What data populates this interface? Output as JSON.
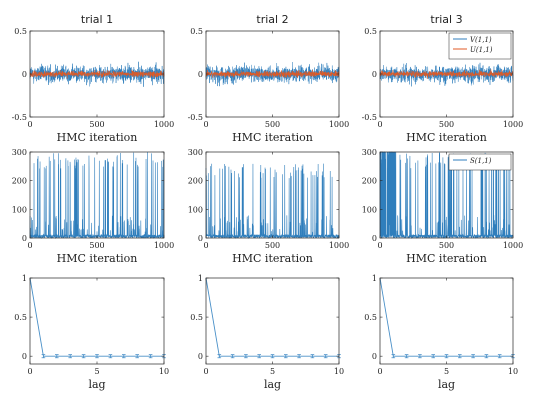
{
  "colors": {
    "trace_v": "#2f7ebc",
    "trace_u": "#e05a25",
    "s_trace": "#2f7ebc",
    "acf_line": "#4a90c8",
    "axis": "#262626"
  },
  "chart_data": [
    {
      "type": "line",
      "panel": "trial1-traces",
      "title": "trial 1",
      "xlabel": "HMC iteration",
      "ylabel": "",
      "xlim": [
        0,
        1000
      ],
      "ylim": [
        -0.5,
        0.5
      ],
      "xticks": [
        0,
        500,
        1000
      ],
      "yticks": [
        -0.5,
        0,
        0.5
      ],
      "xtick_labels": [
        "0",
        "500",
        "1000"
      ],
      "ytick_labels": [
        "-0.5",
        "0",
        "0.5"
      ],
      "series": [
        {
          "legend": "V(1,1)",
          "color": "#2f7ebc",
          "noise_amplitude": 0.15,
          "peak_range": [
            -0.33,
            0.33
          ],
          "n": 1000
        },
        {
          "legend": "U(1,1)",
          "color": "#e05a25",
          "noise_amplitude": 0.05,
          "peak_range": [
            -0.08,
            0.08
          ],
          "n": 1000
        }
      ],
      "legend_visible": false
    },
    {
      "type": "line",
      "panel": "trial2-traces",
      "title": "trial 2",
      "xlabel": "HMC iteration",
      "ylabel": "",
      "xlim": [
        0,
        1000
      ],
      "ylim": [
        -0.5,
        0.5
      ],
      "xticks": [
        0,
        500,
        1000
      ],
      "yticks": [
        -0.5,
        0,
        0.5
      ],
      "xtick_labels": [
        "0",
        "500",
        "1000"
      ],
      "ytick_labels": [
        "-0.5",
        "0",
        "0.5"
      ],
      "series": [
        {
          "legend": "V(1,1)",
          "color": "#2f7ebc",
          "noise_amplitude": 0.15,
          "peak_range": [
            -0.33,
            0.33
          ],
          "n": 1000
        },
        {
          "legend": "U(1,1)",
          "color": "#e05a25",
          "noise_amplitude": 0.05,
          "peak_range": [
            -0.08,
            0.08
          ],
          "n": 1000
        }
      ],
      "legend_visible": false
    },
    {
      "type": "line",
      "panel": "trial3-traces",
      "title": "trial 3",
      "xlabel": "HMC iteration",
      "ylabel": "",
      "xlim": [
        0,
        1000
      ],
      "ylim": [
        -0.5,
        0.5
      ],
      "xticks": [
        0,
        500,
        1000
      ],
      "yticks": [
        -0.5,
        0,
        0.5
      ],
      "xtick_labels": [
        "0",
        "500",
        "1000"
      ],
      "ytick_labels": [
        "-0.5",
        "0",
        "0.5"
      ],
      "series": [
        {
          "legend": "V(1,1)",
          "color": "#2f7ebc",
          "noise_amplitude": 0.15,
          "peak_range": [
            -0.33,
            0.33
          ],
          "n": 1000
        },
        {
          "legend": "U(1,1)",
          "color": "#e05a25",
          "noise_amplitude": 0.05,
          "peak_range": [
            -0.08,
            0.08
          ],
          "n": 1000
        }
      ],
      "legend_visible": true,
      "legend_position": "top-right"
    },
    {
      "type": "line",
      "panel": "trial1-s",
      "title": "",
      "xlabel": "HMC iteration",
      "ylabel": "",
      "xlim": [
        0,
        1000
      ],
      "ylim": [
        0,
        300
      ],
      "xticks": [
        0,
        500,
        1000
      ],
      "yticks": [
        0,
        100,
        200,
        300
      ],
      "xtick_labels": [
        "0",
        "500",
        "1000"
      ],
      "ytick_labels": [
        "0",
        "100",
        "200",
        "300"
      ],
      "series": [
        {
          "legend": "S(1,1)",
          "color": "#2f7ebc",
          "style": "spiky",
          "n": 1000,
          "spike_max": 300
        }
      ],
      "legend_visible": false
    },
    {
      "type": "line",
      "panel": "trial2-s",
      "title": "",
      "xlabel": "HMC iteration",
      "ylabel": "",
      "xlim": [
        0,
        1000
      ],
      "ylim": [
        0,
        300
      ],
      "xticks": [
        0,
        500,
        1000
      ],
      "yticks": [
        0,
        100,
        200,
        300
      ],
      "xtick_labels": [
        "0",
        "500",
        "1000"
      ],
      "ytick_labels": [
        "0",
        "100",
        "200",
        "300"
      ],
      "series": [
        {
          "legend": "S(1,1)",
          "color": "#2f7ebc",
          "style": "spiky",
          "n": 1000,
          "spike_max": 260
        }
      ],
      "legend_visible": false
    },
    {
      "type": "line",
      "panel": "trial3-s",
      "title": "",
      "xlabel": "HMC iteration",
      "ylabel": "",
      "xlim": [
        0,
        1000
      ],
      "ylim": [
        0,
        300
      ],
      "xticks": [
        0,
        500,
        1000
      ],
      "yticks": [
        0,
        100,
        200,
        300
      ],
      "xtick_labels": [
        "0",
        "500",
        "1000"
      ],
      "ytick_labels": [
        "0",
        "100",
        "200",
        "300"
      ],
      "series": [
        {
          "legend": "S(1,1)",
          "color": "#2f7ebc",
          "style": "spiky",
          "n": 1000,
          "spike_max": 300
        }
      ],
      "legend_visible": true,
      "legend_position": "top-right"
    },
    {
      "type": "line",
      "panel": "trial1-acf",
      "title": "",
      "xlabel": "lag",
      "ylabel": "",
      "xlim": [
        0,
        10
      ],
      "ylim": [
        -0.1,
        1
      ],
      "xticks": [
        0,
        5,
        10
      ],
      "yticks": [
        0,
        0.5,
        1
      ],
      "xtick_labels": [
        "0",
        "5",
        "10"
      ],
      "ytick_labels": [
        "0",
        "0.5",
        "1"
      ],
      "x": [
        0,
        1,
        2,
        3,
        4,
        5,
        6,
        7,
        8,
        9,
        10
      ],
      "series": [
        {
          "values": [
            1,
            0,
            0,
            0,
            0,
            0,
            0,
            0,
            0,
            0,
            0
          ],
          "errorbar": 0.02
        }
      ],
      "legend_visible": false
    },
    {
      "type": "line",
      "panel": "trial2-acf",
      "title": "",
      "xlabel": "lag",
      "ylabel": "",
      "xlim": [
        0,
        10
      ],
      "ylim": [
        -0.1,
        1
      ],
      "xticks": [
        0,
        5,
        10
      ],
      "yticks": [
        0,
        0.5,
        1
      ],
      "xtick_labels": [
        "0",
        "5",
        "10"
      ],
      "ytick_labels": [
        "0",
        "0.5",
        "1"
      ],
      "x": [
        0,
        1,
        2,
        3,
        4,
        5,
        6,
        7,
        8,
        9,
        10
      ],
      "series": [
        {
          "values": [
            1,
            0,
            0,
            0,
            0,
            0,
            0,
            0,
            0,
            0,
            0
          ],
          "errorbar": 0.02
        }
      ],
      "legend_visible": false
    },
    {
      "type": "line",
      "panel": "trial3-acf",
      "title": "",
      "xlabel": "lag",
      "ylabel": "",
      "xlim": [
        0,
        10
      ],
      "ylim": [
        -0.1,
        1
      ],
      "xticks": [
        0,
        5,
        10
      ],
      "yticks": [
        0,
        0.5,
        1
      ],
      "xtick_labels": [
        "0",
        "5",
        "10"
      ],
      "ytick_labels": [
        "0",
        "0.5",
        "1"
      ],
      "x": [
        0,
        1,
        2,
        3,
        4,
        5,
        6,
        7,
        8,
        9,
        10
      ],
      "series": [
        {
          "values": [
            1,
            0,
            0,
            0,
            0,
            0,
            0,
            0,
            0,
            0,
            0
          ],
          "errorbar": 0.02
        }
      ],
      "legend_visible": false
    }
  ]
}
